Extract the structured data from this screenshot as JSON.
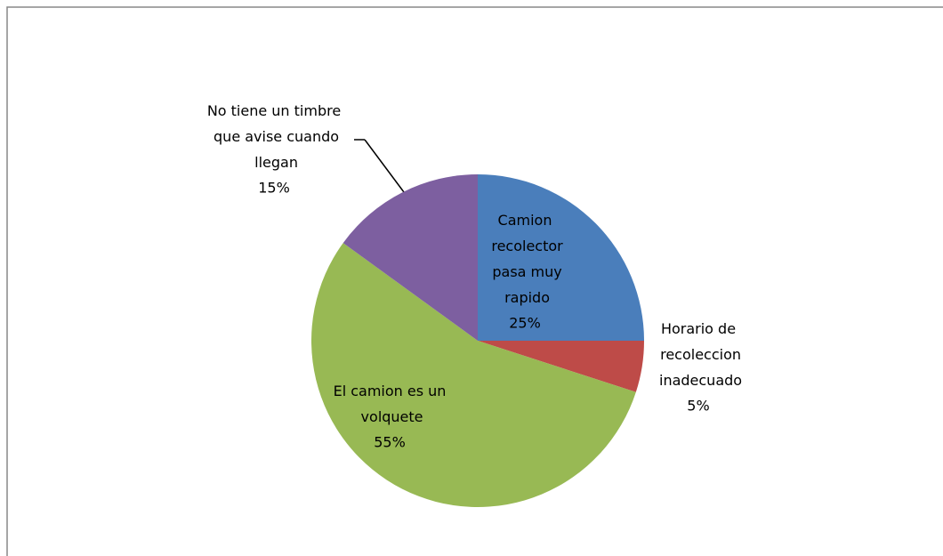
{
  "chart_data": {
    "type": "pie",
    "categories": [
      "Camion recolector pasa muy rapido",
      "Horario de recoleccion inadecuado",
      "El camion es un volquete",
      "No tiene un timbre que avise cuando llegan"
    ],
    "values": [
      25,
      5,
      55,
      15
    ],
    "value_labels": [
      "25%",
      "5%",
      "55%",
      "15%"
    ],
    "colors": [
      "#4a7ebb",
      "#be4b48",
      "#98b954",
      "#7d5fa0"
    ]
  }
}
